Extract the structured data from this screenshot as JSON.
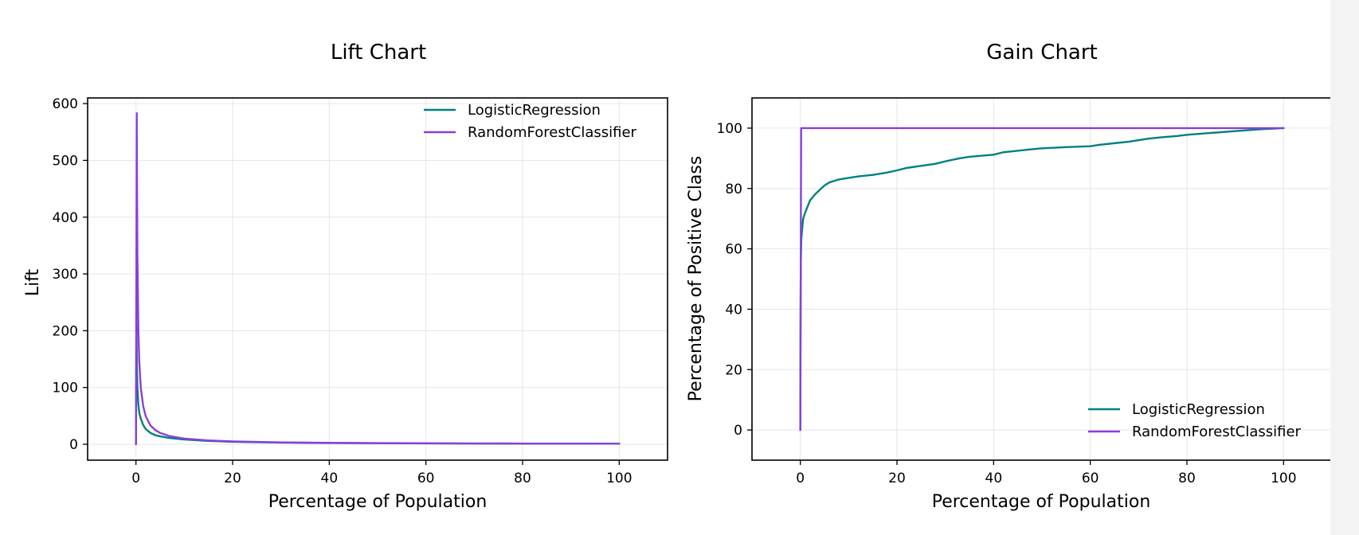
{
  "chart_data": [
    {
      "type": "line",
      "title": "Lift Chart",
      "xlabel": "Percentage of Population",
      "ylabel": "Lift",
      "xlim": [
        -10,
        110
      ],
      "ylim": [
        -28,
        610
      ],
      "xticks": [
        0,
        20,
        40,
        60,
        80,
        100
      ],
      "yticks": [
        0,
        100,
        200,
        300,
        400,
        500,
        600
      ],
      "grid": true,
      "legend_position": "top-right",
      "series": [
        {
          "name": "LogisticRegression",
          "color": "#008080",
          "x": [
            0,
            0.1,
            0.2,
            0.3,
            0.5,
            0.7,
            1,
            1.5,
            2,
            3,
            4,
            5,
            7,
            10,
            15,
            20,
            30,
            40,
            50,
            60,
            70,
            80,
            90,
            100
          ],
          "y": [
            0,
            210,
            130,
            100,
            70,
            55,
            45,
            34,
            27,
            20,
            16,
            14,
            11,
            8.3,
            5.9,
            4.3,
            3.0,
            2.3,
            1.9,
            1.6,
            1.4,
            1.2,
            1.1,
            1.0
          ]
        },
        {
          "name": "RandomForestClassifier",
          "color": "#8a3fdb",
          "x": [
            0,
            0.17,
            0.2,
            0.3,
            0.5,
            0.7,
            1,
            1.5,
            2,
            3,
            4,
            5,
            7,
            10,
            15,
            20,
            30,
            40,
            50,
            60,
            70,
            80,
            90,
            100
          ],
          "y": [
            0,
            583,
            500,
            333,
            200,
            143,
            100,
            67,
            50,
            33,
            25,
            20,
            14.3,
            10,
            6.7,
            5,
            3.3,
            2.5,
            2,
            1.7,
            1.4,
            1.25,
            1.1,
            1.0
          ]
        }
      ]
    },
    {
      "type": "line",
      "title": "Gain Chart",
      "xlabel": "Percentage of Population",
      "ylabel": "Percentage of Positive Class",
      "xlim": [
        -10,
        110
      ],
      "ylim": [
        -10,
        110
      ],
      "xticks": [
        0,
        20,
        40,
        60,
        80,
        100
      ],
      "yticks": [
        0,
        20,
        40,
        60,
        80,
        100
      ],
      "grid": true,
      "legend_position": "bottom-right",
      "series": [
        {
          "name": "LogisticRegression",
          "color": "#008080",
          "x": [
            0,
            0.05,
            0.1,
            0.2,
            0.4,
            0.6,
            1,
            1.5,
            2,
            3,
            4,
            5,
            6,
            8,
            10,
            12,
            15,
            18,
            20,
            22,
            25,
            28,
            30,
            33,
            35,
            40,
            42,
            45,
            48,
            50,
            55,
            60,
            62,
            65,
            68,
            70,
            72,
            75,
            78,
            80,
            85,
            90,
            95,
            100
          ],
          "y": [
            0,
            40,
            55,
            63,
            67,
            70,
            72,
            74,
            76,
            78,
            79.5,
            81,
            82,
            83,
            83.5,
            84,
            84.5,
            85.3,
            86,
            86.8,
            87.5,
            88.2,
            89,
            90,
            90.5,
            91.2,
            92,
            92.5,
            93,
            93.3,
            93.7,
            94,
            94.5,
            95,
            95.5,
            96,
            96.5,
            97,
            97.4,
            97.8,
            98.4,
            99,
            99.6,
            100
          ]
        },
        {
          "name": "RandomForestClassifier",
          "color": "#8a3fdb",
          "x": [
            0,
            0.17,
            100
          ],
          "y": [
            0,
            100,
            100
          ]
        }
      ]
    }
  ]
}
